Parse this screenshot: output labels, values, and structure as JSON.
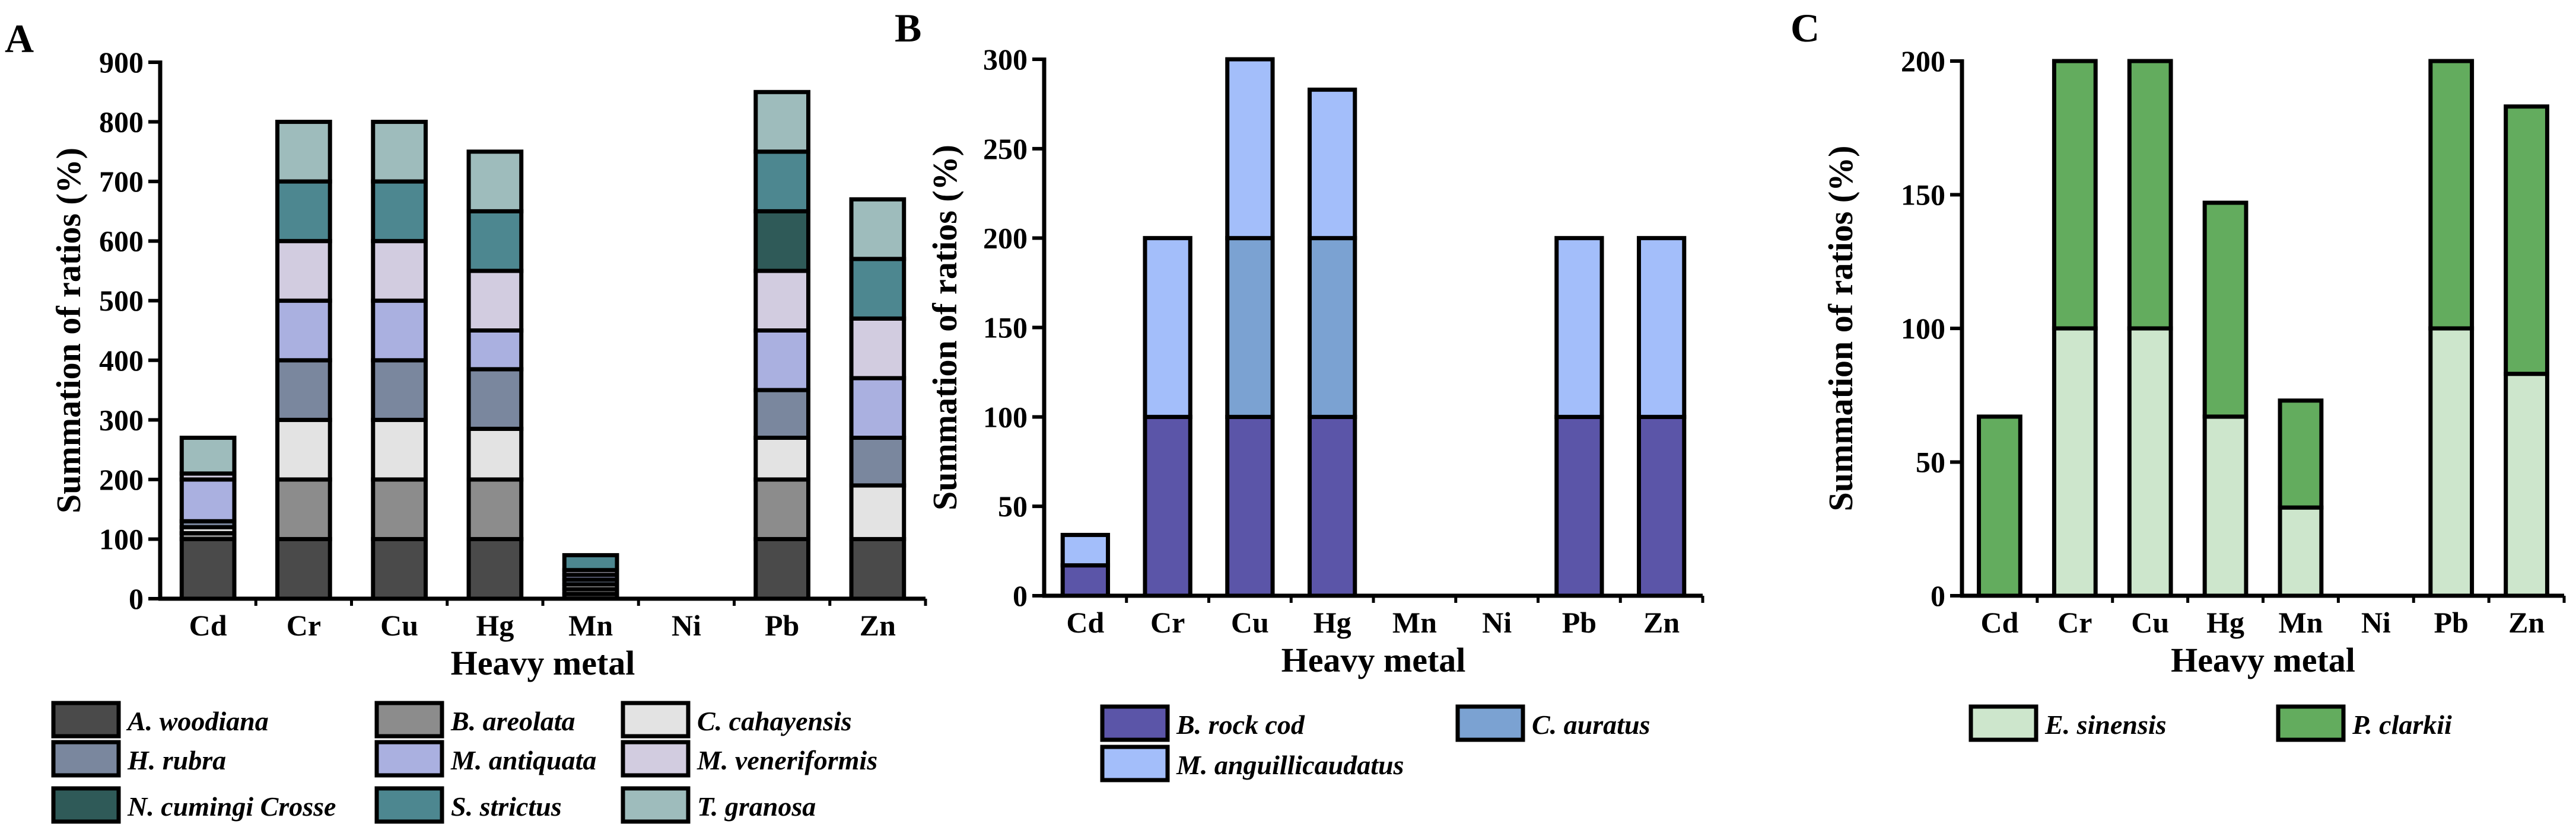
{
  "chart_data": [
    {
      "panel": "A",
      "type": "bar",
      "stacked": true,
      "xlabel": "Heavy metal",
      "ylabel": "Summation of ratios (%)",
      "ylim": [
        0,
        900
      ],
      "yticks": [
        "0",
        "100",
        "200",
        "300",
        "400",
        "500",
        "600",
        "700",
        "800",
        "900"
      ],
      "categories": [
        "Cd",
        "Cr",
        "Cu",
        "Hg",
        "Mn",
        "Ni",
        "Pb",
        "Zn"
      ],
      "series": [
        {
          "name": "A. woodiana",
          "color": "#4a4a4a",
          "values": [
            100,
            100,
            100,
            100,
            8,
            0,
            100,
            100
          ]
        },
        {
          "name": "B. areolata",
          "color": "#8c8c8c",
          "values": [
            10,
            100,
            100,
            100,
            8,
            0,
            100,
            0
          ]
        },
        {
          "name": "C. cahayensis",
          "color": "#e3e3e3",
          "values": [
            10,
            100,
            100,
            85,
            8,
            0,
            70,
            90
          ]
        },
        {
          "name": "H. rubra",
          "color": "#7a879e",
          "values": [
            10,
            100,
            100,
            100,
            8,
            0,
            80,
            80
          ]
        },
        {
          "name": "M. antiquata",
          "color": "#aab0e0",
          "values": [
            70,
            100,
            100,
            65,
            8,
            0,
            100,
            100
          ]
        },
        {
          "name": "M. veneriformis",
          "color": "#d2cce0",
          "values": [
            10,
            100,
            100,
            100,
            8,
            0,
            100,
            100
          ]
        },
        {
          "name": "N. cumingi Crosse",
          "color": "#2f5a58",
          "values": [
            0,
            0,
            0,
            0,
            0,
            0,
            100,
            0
          ]
        },
        {
          "name": "S. strictus",
          "color": "#4d8790",
          "values": [
            0,
            100,
            100,
            100,
            25,
            0,
            100,
            100
          ]
        },
        {
          "name": "T.  granosa",
          "color": "#9ebcbc",
          "values": [
            60,
            100,
            100,
            100,
            0,
            0,
            100,
            100
          ]
        }
      ]
    },
    {
      "panel": "B",
      "type": "bar",
      "stacked": true,
      "xlabel": "Heavy metal",
      "ylabel": "Summation of ratios (%)",
      "ylim": [
        0,
        300
      ],
      "yticks": [
        "0",
        "50",
        "100",
        "150",
        "200",
        "250",
        "300"
      ],
      "categories": [
        "Cd",
        "Cr",
        "Cu",
        "Hg",
        "Mn",
        "Ni",
        "Pb",
        "Zn"
      ],
      "series": [
        {
          "name": "B. rock cod",
          "color": "#5b55a8",
          "values": [
            17,
            100,
            100,
            100,
            0,
            0,
            100,
            100
          ]
        },
        {
          "name": "C. auratus",
          "color": "#7ba2d2",
          "values": [
            0,
            0,
            100,
            100,
            0,
            0,
            0,
            0
          ]
        },
        {
          "name": "M. anguillicaudatus",
          "color": "#a3befa",
          "values": [
            17,
            100,
            100,
            83,
            0,
            0,
            100,
            100
          ]
        }
      ]
    },
    {
      "panel": "C",
      "type": "bar",
      "stacked": true,
      "xlabel": "Heavy metal",
      "ylabel": "Summation of ratios (%)",
      "ylim": [
        0,
        200
      ],
      "yticks": [
        "0",
        "50",
        "100",
        "150",
        "200"
      ],
      "categories": [
        "Cd",
        "Cr",
        "Cu",
        "Hg",
        "Mn",
        "Ni",
        "Pb",
        "Zn"
      ],
      "series": [
        {
          "name": "E. sinensis",
          "color": "#cde6cc",
          "values": [
            0,
            100,
            100,
            67,
            33,
            0,
            100,
            83
          ]
        },
        {
          "name": "P. clarkii",
          "color": "#63ac5e",
          "values": [
            67,
            100,
            100,
            80,
            40,
            0,
            100,
            100
          ]
        }
      ]
    }
  ]
}
